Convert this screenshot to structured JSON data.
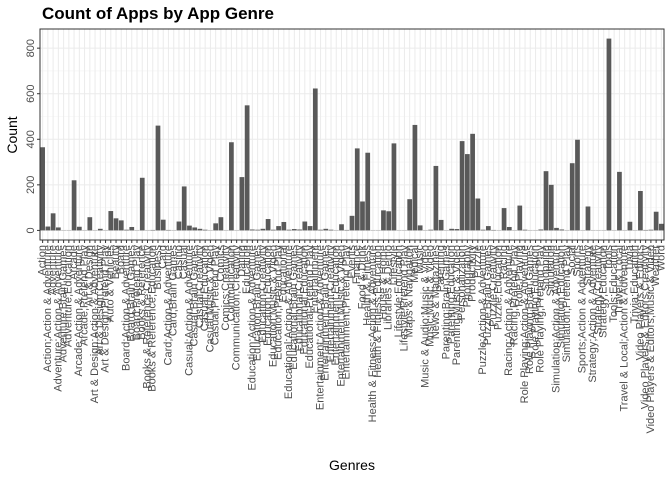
{
  "chart_data": {
    "type": "bar",
    "title": "Count of Apps by App Genre",
    "x_label": "Genres",
    "y_label": "Count",
    "color": "#595959",
    "grid": true,
    "ylim": [
      -42.1,
      884.1
    ],
    "yticks": [
      0,
      200,
      400,
      600,
      800
    ],
    "categories": [
      "Action",
      "Action;Action & Adventure",
      "Adventure",
      "Adventure;Action & Adventure",
      "Adventure;Brain Games",
      "Adventure;Education",
      "Arcade",
      "Arcade;Action & Adventure",
      "Arcade;Pretend Play",
      "Art & Design",
      "Art & Design;Action & Adventure",
      "Art & Design;Creativity",
      "Art & Design;Pretend Play",
      "Auto & Vehicles",
      "Beauty",
      "Board",
      "Board;Action & Adventure",
      "Board;Brain Games",
      "Board;Pretend Play",
      "Books & Reference",
      "Books & Reference;Creativity",
      "Books & Reference;Education",
      "Business",
      "Card",
      "Card;Action & Adventure",
      "Card;Brain Games",
      "Casino",
      "Casual",
      "Casual;Action & Adventure",
      "Casual;Brain Games",
      "Casual;Creativity",
      "Casual;Education",
      "Casual;Music & Video",
      "Casual;Pretend Play",
      "Comics",
      "Comics;Creativity",
      "Communication",
      "Communication;Creativity",
      "Dating",
      "Education",
      "Education;Action & Adventure",
      "Education;Brain Games",
      "Education;Creativity",
      "Education;Education",
      "Education;Music & Video",
      "Education;Pretend Play",
      "Educational",
      "Educational;Action & Adventure",
      "Educational;Brain Games",
      "Educational;Creativity",
      "Educational;Education",
      "Educational;Pretend Play",
      "Entertainment",
      "Entertainment;Action & Adventure",
      "Entertainment;Brain Games",
      "Entertainment;Creativity",
      "Entertainment;Education",
      "Entertainment;Music & Video",
      "Entertainment;Pretend Play",
      "Events",
      "Finance",
      "Food & Drink",
      "Health & Fitness",
      "Health & Fitness;Action & Adventure",
      "Health & Fitness;Education",
      "House & Home",
      "Libraries & Demo",
      "Lifestyle",
      "Lifestyle;Education",
      "Lifestyle;Pretend Play",
      "Maps & Navigation",
      "Medical",
      "Music",
      "Music & Audio;Music & Video",
      "Music;Music & Video",
      "News & Magazines",
      "Parenting",
      "Parenting;Brain Games",
      "Parenting;Education",
      "Parenting;Music & Video",
      "Personalization",
      "Photography",
      "Productivity",
      "Puzzle",
      "Puzzle;Action & Adventure",
      "Puzzle;Brain Games",
      "Puzzle;Creativity",
      "Puzzle;Education",
      "Racing",
      "Racing;Action & Adventure",
      "Racing;Pretend Play",
      "Role Playing",
      "Role Playing;Action & Adventure",
      "Role Playing;Brain Games",
      "Role Playing;Education",
      "Role Playing;Pretend Play",
      "Shopping",
      "Simulation",
      "Simulation;Action & Adventure",
      "Simulation;Education",
      "Simulation;Pretend Play",
      "Social",
      "Sports",
      "Sports;Action & Adventure",
      "Strategy",
      "Strategy;Action & Adventure",
      "Strategy;Creativity",
      "Strategy;Education",
      "Tools",
      "Tools;Education",
      "Travel & Local",
      "Travel & Local;Action & Adventure",
      "Trivia",
      "Trivia;Education",
      "Video Players & Editors",
      "Video Players & Editors;Creativity",
      "Video Players & Editors;Music & Video",
      "Weather",
      "Word"
    ],
    "values": [
      365,
      17,
      75,
      13,
      1,
      1,
      220,
      16,
      1,
      58,
      1,
      7,
      1,
      85,
      53,
      44,
      3,
      15,
      1,
      231,
      1,
      2,
      460,
      47,
      2,
      1,
      39,
      193,
      21,
      13,
      7,
      3,
      1,
      31,
      58,
      1,
      387,
      1,
      234,
      549,
      4,
      3,
      7,
      50,
      3,
      19,
      37,
      3,
      6,
      4,
      39,
      19,
      623,
      3,
      7,
      3,
      1,
      27,
      2,
      64,
      360,
      127,
      341,
      1,
      1,
      88,
      84,
      382,
      1,
      1,
      137,
      463,
      22,
      1,
      3,
      283,
      46,
      1,
      7,
      6,
      392,
      335,
      424,
      140,
      3,
      19,
      2,
      1,
      98,
      15,
      1,
      109,
      3,
      1,
      1,
      4,
      260,
      200,
      11,
      4,
      1,
      295,
      398,
      1,
      105,
      1,
      1,
      1,
      842,
      1,
      257,
      1,
      38,
      1,
      173,
      2,
      3,
      82,
      29
    ]
  }
}
